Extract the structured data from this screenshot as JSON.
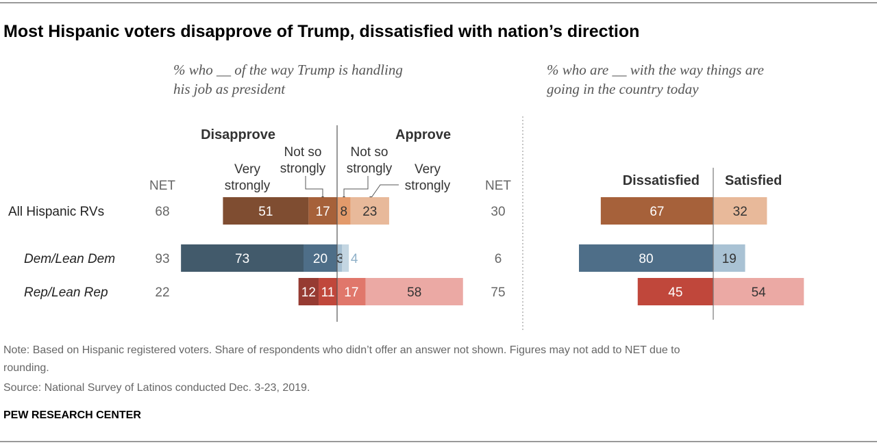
{
  "chart_data": [
    {
      "type": "bar",
      "orientation": "horizontal-diverging",
      "title": "Most Hispanic voters disapprove of Trump, dissatisfied with nation’s direction",
      "subtitle": [
        "% who __ of the way Trump is handling",
        "his job as president"
      ],
      "group_labels": {
        "left": "Disapprove",
        "right": "Approve"
      },
      "segment_labels": {
        "left_outer": [
          "Very",
          "strongly"
        ],
        "left_inner": [
          "Not so",
          "strongly"
        ],
        "right_inner": [
          "Not so",
          "strongly"
        ],
        "right_outer": [
          "Very",
          "strongly"
        ]
      },
      "net_label": "NET",
      "categories": [
        "All Hispanic RVs",
        "Dem/Lean Dem",
        "Rep/Lean Rep"
      ],
      "series": [
        {
          "name": "Disapprove Very strongly",
          "values": [
            51,
            73,
            12
          ]
        },
        {
          "name": "Disapprove Not so strongly",
          "values": [
            17,
            20,
            11
          ]
        },
        {
          "name": "Approve Not so strongly",
          "values": [
            8,
            3,
            17
          ]
        },
        {
          "name": "Approve Very strongly",
          "values": [
            23,
            4,
            58
          ]
        }
      ],
      "net_disapprove": [
        68,
        93,
        22
      ],
      "net_approve": [
        30,
        6,
        75
      ],
      "colors": [
        [
          "#7f4d31",
          "#a6613a",
          "#e39a6b",
          "#e8b99a"
        ],
        [
          "#425a6b",
          "#4e6e88",
          "#a7c0d2",
          "#c4d6e2"
        ],
        [
          "#963b32",
          "#c0473b",
          "#e0776b",
          "#eba9a4"
        ]
      ]
    },
    {
      "type": "bar",
      "orientation": "horizontal-diverging",
      "subtitle": [
        "% who are __ with the way things are",
        "going in the country today"
      ],
      "group_labels": {
        "left": "Dissatisfied",
        "right": "Satisfied"
      },
      "categories": [
        "All Hispanic RVs",
        "Dem/Lean Dem",
        "Rep/Lean Rep"
      ],
      "series": [
        {
          "name": "Dissatisfied",
          "values": [
            67,
            80,
            45
          ]
        },
        {
          "name": "Satisfied",
          "values": [
            32,
            19,
            54
          ]
        }
      ],
      "colors": [
        [
          "#a6613a",
          "#e8b99a"
        ],
        [
          "#4e6e88",
          "#a9c2d4"
        ],
        [
          "#c0473b",
          "#eba9a4"
        ]
      ]
    }
  ],
  "notes": [
    "Note: Based on Hispanic registered voters. Share of respondents who didn’t offer an answer not shown. Figures may not add to NET due to",
    "rounding.",
    "Source: National Survey of Latinos conducted Dec. 3-23, 2019."
  ],
  "footer": "PEW RESEARCH CENTER"
}
